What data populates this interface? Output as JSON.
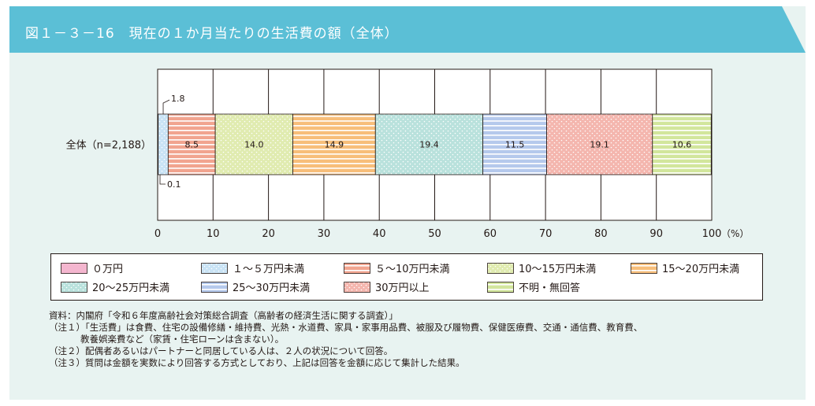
{
  "title": "図１－３－16　現在の１か月当たりの生活費の額（全体）",
  "chart_data": {
    "type": "bar",
    "orientation": "horizontal-stacked-100",
    "categories": [
      "全体（n=2,188）"
    ],
    "series": [
      {
        "name": "０万円",
        "values": [
          0.1
        ],
        "color": "#f4b6cf"
      },
      {
        "name": "１～５万円未満",
        "values": [
          1.8
        ],
        "color": "#c9e3f5"
      },
      {
        "name": "５～10万円未満",
        "values": [
          8.5
        ],
        "color": "#f1a48f"
      },
      {
        "name": "10～15万円未満",
        "values": [
          14.0
        ],
        "color": "#e0ebb0"
      },
      {
        "name": "15～20万円未満",
        "values": [
          14.9
        ],
        "color": "#f7be7a"
      },
      {
        "name": "20～25万円未満",
        "values": [
          19.4
        ],
        "color": "#b9e1dc"
      },
      {
        "name": "25～30万円未満",
        "values": [
          11.5
        ],
        "color": "#b5c9ec"
      },
      {
        "name": "30万円以上",
        "values": [
          19.1
        ],
        "color": "#f4b6ae"
      },
      {
        "name": "不明・無回答",
        "values": [
          10.6
        ],
        "color": "#d2e69c"
      }
    ],
    "data_labels": [
      "0.1",
      "1.8",
      "8.5",
      "14.0",
      "14.9",
      "19.4",
      "11.5",
      "19.1",
      "10.6"
    ],
    "xlim": [
      0,
      100
    ],
    "xticks": [
      "0",
      "10",
      "20",
      "30",
      "40",
      "50",
      "60",
      "70",
      "80",
      "90",
      "100"
    ],
    "xunit": "（%）",
    "grid": true,
    "legend_position": "bottom"
  },
  "legend_items": [
    {
      "label": "０万円",
      "color": "#f4b6cf"
    },
    {
      "label": "１～５万円未満",
      "color": "#c9e3f5"
    },
    {
      "label": "５～10万円未満",
      "color": "#f1a48f"
    },
    {
      "label": "10～15万円未満",
      "color": "#e0ebb0"
    },
    {
      "label": "15～20万円未満",
      "color": "#f7be7a"
    },
    {
      "label": "20～25万円未満",
      "color": "#b9e1dc"
    },
    {
      "label": "25～30万円未満",
      "color": "#b5c9ec"
    },
    {
      "label": "30万円以上",
      "color": "#f4b6ae"
    },
    {
      "label": "不明・無回答",
      "color": "#d2e69c"
    }
  ],
  "notes": {
    "source": "資料：内閣府「令和６年度高齢社会対策総合調査（高齢者の経済生活に関する調査）」",
    "note1": "（注１）「生活費」は食費、住宅の設備修繕・維持費、光熱・水道費、家具・家事用品費、被服及び履物費、保健医療費、交通・通信費、教育費、",
    "note1_cont": "教養娯楽費など（家賃・住宅ローンは含まない）。",
    "note2": "（注２）配偶者あるいはパートナーと同居している人は、２人の状況について回答。",
    "note3": "（注３）質問は金額を実数により回答する方式としており、上記は回答を金額に応じて集計した結果。"
  },
  "colors": {
    "header": "#5bbfd6",
    "panel": "#e8f3f1",
    "text": "#231815"
  }
}
